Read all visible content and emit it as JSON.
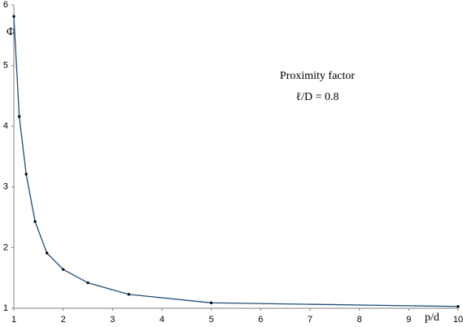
{
  "chart_data": {
    "type": "line",
    "x_label": "p/d",
    "y_label": "Φ",
    "annotations": [
      "Proximity factor",
      "ℓ/D = 0.8"
    ],
    "x": [
      1,
      1.11,
      1.25,
      1.43,
      1.67,
      2,
      2.5,
      3.33,
      5,
      10
    ],
    "series": [
      {
        "color": "#1f4e79",
        "marker_color": "#000000",
        "values": [
          5.81,
          4.16,
          3.21,
          2.43,
          1.91,
          1.64,
          1.42,
          1.23,
          1.09,
          1.03
        ]
      }
    ],
    "xlim": [
      1,
      10
    ],
    "xticks": [
      1,
      2,
      3,
      4,
      5,
      6,
      7,
      8,
      9,
      10
    ],
    "ylim": [
      1,
      6
    ],
    "yticks": [
      1,
      2,
      3,
      4,
      5,
      6
    ],
    "grid": false
  }
}
